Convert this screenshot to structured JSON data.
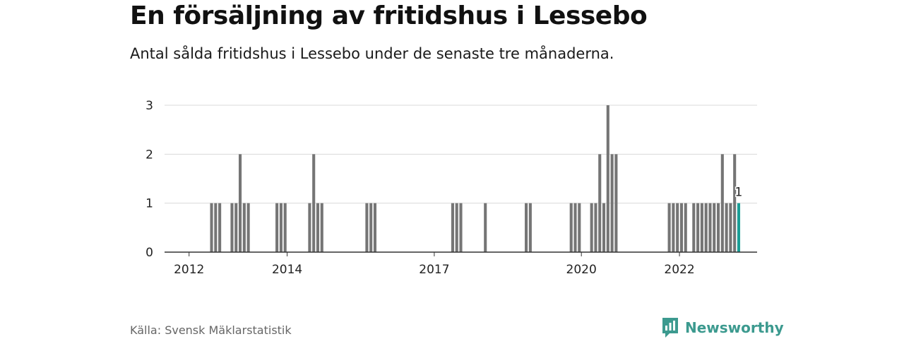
{
  "title": "En försäljning av fritidshus i Lessebo",
  "subtitle": "Antal sålda fritidshus i Lessebo under de senaste tre månaderna.",
  "source": "Källa: Svensk Mäklarstatistik",
  "brand": {
    "name": "Newsworthy",
    "logo_icon": "newsworthy-logo-icon",
    "color": "#3c9a8f"
  },
  "colors": {
    "bar": "#757575",
    "highlight": "#1a9e96",
    "grid": "#d9d9d9",
    "axis": "#333333"
  },
  "chart_data": {
    "type": "bar",
    "title": "En försäljning av fritidshus i Lessebo",
    "subtitle": "Antal sålda fritidshus i Lessebo under de senaste tre månaderna.",
    "xlabel": "",
    "ylabel": "",
    "ylim": [
      0,
      3
    ],
    "yticks": [
      0,
      1,
      2,
      3
    ],
    "xlim": [
      "2011-07",
      "2023-08"
    ],
    "xticks": [
      {
        "label": "2012",
        "month": "2012-01"
      },
      {
        "label": "2014",
        "month": "2014-01"
      },
      {
        "label": "2017",
        "month": "2017-01"
      },
      {
        "label": "2020",
        "month": "2020-01"
      },
      {
        "label": "2022",
        "month": "2022-01"
      }
    ],
    "grid": true,
    "highlight_label": "1",
    "months": [
      "2012-06",
      "2012-07",
      "2012-08",
      "2012-11",
      "2012-12",
      "2013-01",
      "2013-02",
      "2013-03",
      "2013-10",
      "2013-11",
      "2013-12",
      "2014-06",
      "2014-07",
      "2014-08",
      "2014-09",
      "2015-08",
      "2015-09",
      "2015-10",
      "2017-05",
      "2017-06",
      "2017-07",
      "2018-01",
      "2018-11",
      "2018-12",
      "2019-10",
      "2019-11",
      "2019-12",
      "2020-03",
      "2020-04",
      "2020-05",
      "2020-06",
      "2020-07",
      "2020-08",
      "2020-09",
      "2021-10",
      "2021-11",
      "2021-12",
      "2022-01",
      "2022-02",
      "2022-04",
      "2022-05",
      "2022-06",
      "2022-07",
      "2022-08",
      "2022-09",
      "2022-10",
      "2022-11",
      "2022-12",
      "2023-01",
      "2023-02",
      "2023-03"
    ],
    "values": [
      1,
      1,
      1,
      1,
      1,
      2,
      1,
      1,
      1,
      1,
      1,
      1,
      2,
      1,
      1,
      1,
      1,
      1,
      1,
      1,
      1,
      1,
      1,
      1,
      1,
      1,
      1,
      1,
      1,
      2,
      1,
      3,
      2,
      2,
      1,
      1,
      1,
      1,
      1,
      1,
      1,
      1,
      1,
      1,
      1,
      1,
      2,
      1,
      1,
      2,
      1
    ],
    "highlight_month": "2023-03"
  }
}
